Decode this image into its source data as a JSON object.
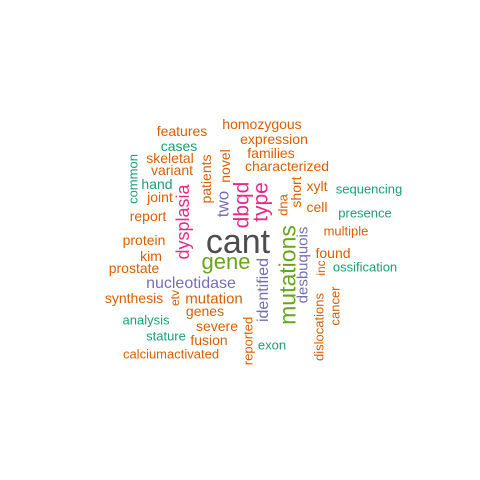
{
  "colors": {
    "dark_gray": "#4d4d4d",
    "green": "#66a61e",
    "pink": "#e7298a",
    "purple": "#7570b3",
    "orange": "#d95f02",
    "teal": "#1b9e77"
  },
  "words": [
    {
      "text": "cant",
      "color": "dark_gray"
    },
    {
      "text": "gene",
      "color": "green"
    },
    {
      "text": "mutations",
      "color": "green"
    },
    {
      "text": "dysplasia",
      "color": "pink"
    },
    {
      "text": "dbqd",
      "color": "pink"
    },
    {
      "text": "type",
      "color": "pink"
    },
    {
      "text": "two",
      "color": "purple"
    },
    {
      "text": "nucleotidase",
      "color": "purple"
    },
    {
      "text": "identified",
      "color": "purple"
    },
    {
      "text": "desbuquois",
      "color": "purple"
    },
    {
      "text": "mutation",
      "color": "orange"
    },
    {
      "text": "patients",
      "color": "orange"
    },
    {
      "text": "novel",
      "color": "orange"
    },
    {
      "text": "characterized",
      "color": "orange"
    },
    {
      "text": "families",
      "color": "orange"
    },
    {
      "text": "expression",
      "color": "orange"
    },
    {
      "text": "homozygous",
      "color": "orange"
    },
    {
      "text": "features",
      "color": "orange"
    },
    {
      "text": "cases",
      "color": "teal"
    },
    {
      "text": "skeletal",
      "color": "orange"
    },
    {
      "text": "variant",
      "color": "orange"
    },
    {
      "text": "hand",
      "color": "teal"
    },
    {
      "text": "joint",
      "color": "orange"
    },
    {
      "text": "common",
      "color": "teal"
    },
    {
      "text": "report",
      "color": "orange"
    },
    {
      "text": "short",
      "color": "orange"
    },
    {
      "text": "xylt",
      "color": "orange"
    },
    {
      "text": "sequencing",
      "color": "teal"
    },
    {
      "text": "dna",
      "color": "orange"
    },
    {
      "text": "cell",
      "color": "orange"
    },
    {
      "text": "presence",
      "color": "teal"
    },
    {
      "text": "multiple",
      "color": "orange"
    },
    {
      "text": "protein",
      "color": "orange"
    },
    {
      "text": "kim",
      "color": "orange"
    },
    {
      "text": "prostate",
      "color": "orange"
    },
    {
      "text": "found",
      "color": "orange"
    },
    {
      "text": "inc",
      "color": "orange"
    },
    {
      "text": "ossification",
      "color": "teal"
    },
    {
      "text": "synthesis",
      "color": "orange"
    },
    {
      "text": "etv",
      "color": "orange"
    },
    {
      "text": "genes",
      "color": "orange"
    },
    {
      "text": "analysis",
      "color": "teal"
    },
    {
      "text": "severe",
      "color": "orange"
    },
    {
      "text": "stature",
      "color": "teal"
    },
    {
      "text": "fusion",
      "color": "orange"
    },
    {
      "text": "reported",
      "color": "orange"
    },
    {
      "text": "exon",
      "color": "teal"
    },
    {
      "text": "dislocations",
      "color": "orange"
    },
    {
      "text": "cancer",
      "color": "orange"
    },
    {
      "text": "calciumactivated",
      "color": "orange"
    }
  ]
}
